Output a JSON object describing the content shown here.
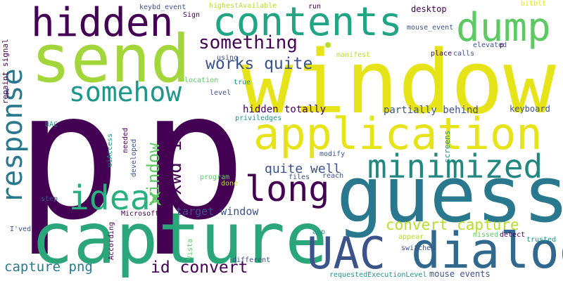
{
  "palette": {
    "purple": "#440154",
    "darkblue": "#3b528b",
    "teal": "#21918c",
    "green": "#5ec962",
    "lime": "#b5de2b",
    "yellow": "#e6e418"
  },
  "words": [
    "p",
    "p",
    "window",
    "guess",
    "capture",
    "send",
    "application",
    "dialog",
    "UAC",
    "hidden",
    "contents",
    "dump",
    "long",
    "idea",
    "minimized",
    "somehow",
    "response",
    "something",
    "works quite",
    "xwd id",
    "window",
    "convert capture",
    "id convert",
    "capture png",
    "quite well",
    "target window",
    "hidden totally",
    "partially behind",
    "keyboard",
    "x",
    "desktop",
    "mouse_event",
    "bitblt",
    "elevated",
    "manifest",
    "calls",
    "place",
    "run",
    "keybd_event",
    "Sign",
    "highestAvailable",
    "repaint signal",
    "using",
    "location",
    "true",
    "level",
    "UAC",
    "priviledges",
    "needed",
    "uiAccess",
    "developed",
    "modify",
    "files",
    "reach",
    "program",
    "done",
    "screens",
    "step",
    "Microsoft",
    "C",
    "I'ved",
    "According",
    "Vista",
    "app",
    "appear",
    "missed",
    "detect",
    "trusted",
    "switches",
    "different",
    "requestedExecutionLevel",
    "mouse events",
    "p"
  ]
}
